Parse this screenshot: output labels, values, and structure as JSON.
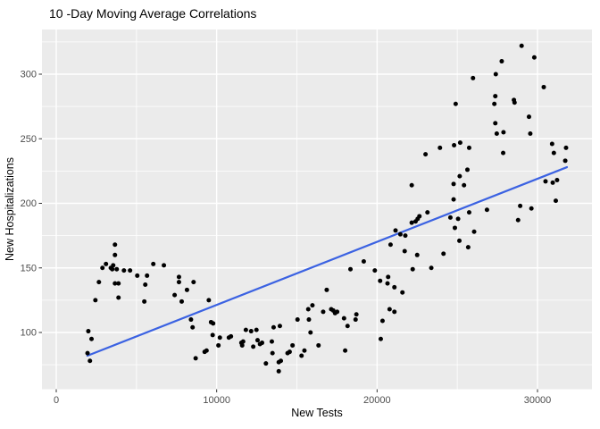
{
  "window": {
    "title": "10 -Day Moving Average Correlations"
  },
  "chart_data": {
    "type": "scatter",
    "title": "10 -Day Moving Average Correlations",
    "xlabel": "New Tests",
    "ylabel": "New Hospitalizations",
    "x_ticks": [
      0,
      10000,
      20000,
      30000
    ],
    "x_tick_labels": [
      "0",
      "10000",
      "20000",
      "30000"
    ],
    "x_minor_ticks": [
      5000,
      15000,
      25000
    ],
    "y_ticks": [
      100,
      150,
      200,
      250,
      300
    ],
    "y_tick_labels": [
      "100",
      "150",
      "200",
      "250",
      "300"
    ],
    "y_minor_ticks": [
      75,
      125,
      175,
      225,
      275,
      325
    ],
    "xlim": [
      -900,
      33300
    ],
    "ylim": [
      57,
      334
    ],
    "grid": true,
    "legend": false,
    "panel_color": "#EBEBEB",
    "grid_color": "#FFFFFF",
    "point_color": "#000000",
    "tick_color": "#333333",
    "tick_text_color": "#4D4D4D",
    "trend_line": {
      "type": "linear",
      "color": "#3B62E2",
      "x": [
        1940,
        31835
      ],
      "y": [
        82,
        228
      ]
    },
    "points": [
      [
        2000,
        101
      ],
      [
        2200,
        95
      ],
      [
        1950,
        84
      ],
      [
        2100,
        78
      ],
      [
        2440,
        125
      ],
      [
        2660,
        139
      ],
      [
        2880,
        150
      ],
      [
        3100,
        153
      ],
      [
        3400,
        150
      ],
      [
        3490,
        149
      ],
      [
        3550,
        152
      ],
      [
        3660,
        168
      ],
      [
        3660,
        160
      ],
      [
        3770,
        149
      ],
      [
        3660,
        138
      ],
      [
        3880,
        138
      ],
      [
        3880,
        127
      ],
      [
        4220,
        148
      ],
      [
        4600,
        148
      ],
      [
        5050,
        144
      ],
      [
        5490,
        124
      ],
      [
        5550,
        137
      ],
      [
        5660,
        144
      ],
      [
        6050,
        153
      ],
      [
        6710,
        152
      ],
      [
        7650,
        143
      ],
      [
        7650,
        139
      ],
      [
        7380,
        129
      ],
      [
        8150,
        133
      ],
      [
        7820,
        124
      ],
      [
        8560,
        139
      ],
      [
        8400,
        110
      ],
      [
        8500,
        104
      ],
      [
        9510,
        125
      ],
      [
        9650,
        108
      ],
      [
        9780,
        107
      ],
      [
        9750,
        98
      ],
      [
        10110,
        90
      ],
      [
        10200,
        96
      ],
      [
        8690,
        80
      ],
      [
        9250,
        85
      ],
      [
        9370,
        86
      ],
      [
        10760,
        96
      ],
      [
        10890,
        97
      ],
      [
        11540,
        92
      ],
      [
        11650,
        93
      ],
      [
        11590,
        90
      ],
      [
        11820,
        102
      ],
      [
        12150,
        101
      ],
      [
        12280,
        89
      ],
      [
        12480,
        102
      ],
      [
        12550,
        94
      ],
      [
        12700,
        91
      ],
      [
        12830,
        92
      ],
      [
        13070,
        76
      ],
      [
        13440,
        93
      ],
      [
        13480,
        84
      ],
      [
        13550,
        104
      ],
      [
        13870,
        77
      ],
      [
        14000,
        78
      ],
      [
        13870,
        70
      ],
      [
        13940,
        105
      ],
      [
        14420,
        84
      ],
      [
        14550,
        85
      ],
      [
        14730,
        90
      ],
      [
        15040,
        110
      ],
      [
        15290,
        82
      ],
      [
        15470,
        86
      ],
      [
        15710,
        118
      ],
      [
        15750,
        110
      ],
      [
        15850,
        100
      ],
      [
        15970,
        121
      ],
      [
        16350,
        90
      ],
      [
        16640,
        116
      ],
      [
        17140,
        118
      ],
      [
        17270,
        117
      ],
      [
        17510,
        116
      ],
      [
        17380,
        115
      ],
      [
        16860,
        133
      ],
      [
        17940,
        111
      ],
      [
        18160,
        105
      ],
      [
        18660,
        110
      ],
      [
        18710,
        114
      ],
      [
        18010,
        86
      ],
      [
        18340,
        149
      ],
      [
        19170,
        155
      ],
      [
        19860,
        148
      ],
      [
        20190,
        140
      ],
      [
        20690,
        143
      ],
      [
        20650,
        138
      ],
      [
        20340,
        109
      ],
      [
        20230,
        95
      ],
      [
        20780,
        118
      ],
      [
        21080,
        116
      ],
      [
        20840,
        168
      ],
      [
        21080,
        135
      ],
      [
        21150,
        179
      ],
      [
        21450,
        176
      ],
      [
        21760,
        175
      ],
      [
        21580,
        131
      ],
      [
        21720,
        163
      ],
      [
        22160,
        185
      ],
      [
        22400,
        186
      ],
      [
        22530,
        188
      ],
      [
        22640,
        190
      ],
      [
        23140,
        193
      ],
      [
        22500,
        160
      ],
      [
        22220,
        149
      ],
      [
        23380,
        150
      ],
      [
        24140,
        161
      ],
      [
        23020,
        238
      ],
      [
        23920,
        243
      ],
      [
        24800,
        245
      ],
      [
        22160,
        214
      ],
      [
        24770,
        215
      ],
      [
        24770,
        203
      ],
      [
        24570,
        189
      ],
      [
        24850,
        181
      ],
      [
        24900,
        277
      ],
      [
        25050,
        188
      ],
      [
        25740,
        193
      ],
      [
        26850,
        195
      ],
      [
        28790,
        187
      ],
      [
        29620,
        196
      ],
      [
        26050,
        178
      ],
      [
        25130,
        171
      ],
      [
        25680,
        166
      ],
      [
        28920,
        198
      ],
      [
        29010,
        322
      ],
      [
        29800,
        313
      ],
      [
        27770,
        310
      ],
      [
        27400,
        300
      ],
      [
        25980,
        297
      ],
      [
        30390,
        290
      ],
      [
        27370,
        283
      ],
      [
        27310,
        277
      ],
      [
        28530,
        280
      ],
      [
        28570,
        278
      ],
      [
        29470,
        267
      ],
      [
        27370,
        262
      ],
      [
        27460,
        254
      ],
      [
        27880,
        255
      ],
      [
        29550,
        254
      ],
      [
        25180,
        247
      ],
      [
        25740,
        243
      ],
      [
        30910,
        246
      ],
      [
        31780,
        243
      ],
      [
        31020,
        239
      ],
      [
        27860,
        239
      ],
      [
        31730,
        233
      ],
      [
        25630,
        226
      ],
      [
        25150,
        221
      ],
      [
        25420,
        214
      ],
      [
        30500,
        217
      ],
      [
        30950,
        216
      ],
      [
        31220,
        218
      ],
      [
        31140,
        202
      ]
    ]
  }
}
